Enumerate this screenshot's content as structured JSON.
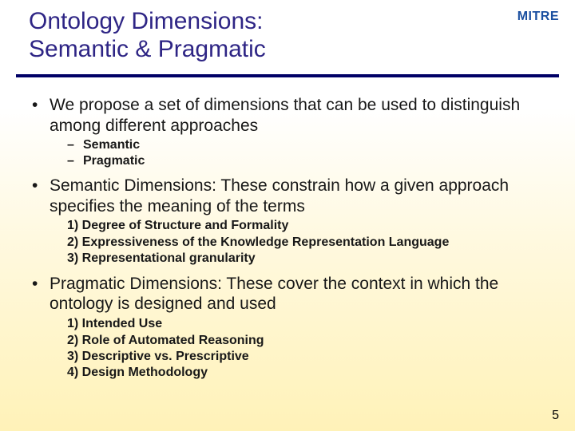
{
  "brand": "MITRE",
  "title_line1": "Ontology Dimensions:",
  "title_line2": "Semantic & Pragmatic",
  "page_number": "5",
  "bullets": {
    "b1": {
      "text": "We propose a set of dimensions that can be used to distinguish among different approaches",
      "sub": [
        "Semantic",
        "Pragmatic"
      ]
    },
    "b2": {
      "text": "Semantic Dimensions: These constrain how a given approach specifies the meaning of the terms",
      "num": [
        "1) Degree of Structure and Formality",
        "2) Expressiveness of the Knowledge Representation Language",
        "3) Representational granularity"
      ]
    },
    "b3": {
      "text": "Pragmatic Dimensions: These cover the context in which the ontology is designed and used",
      "num": [
        "1) Intended Use",
        "2) Role of Automated Reasoning",
        "3) Descriptive vs. Prescriptive",
        "4) Design Methodology"
      ]
    }
  },
  "colors": {
    "title": "#2e2585",
    "divider": "#000066",
    "logo": "#1a4fa0",
    "bg_top": "#ffffff",
    "bg_bottom": "#fff2b8"
  },
  "fonts": {
    "title_pt": 30,
    "body_pt": 21,
    "sub_pt": 16
  }
}
